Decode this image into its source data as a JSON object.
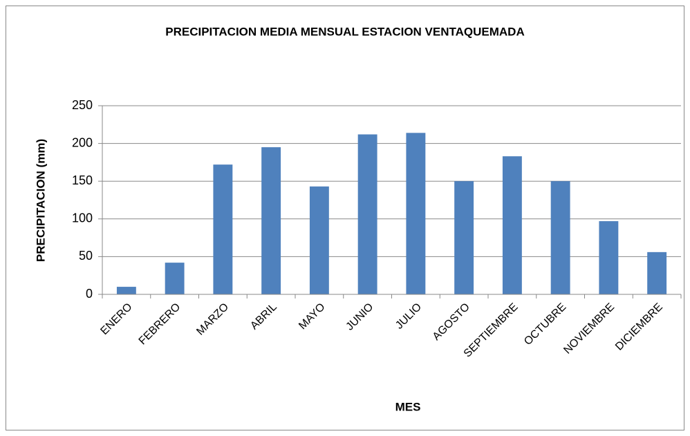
{
  "chart_data": {
    "type": "bar",
    "title": "PRECIPITACION MEDIA MENSUAL ESTACION VENTAQUEMADA",
    "x_label": "MES",
    "y_label": "PRECIPITACION (mm)",
    "categories": [
      "ENERO",
      "FEBRERO",
      "MARZO",
      "ABRIL",
      "MAYO",
      "JUNIO",
      "JULIO",
      "AGOSTO",
      "SEPTIEMBRE",
      "OCTUBRE",
      "NOVIEMBRE",
      "DICIEMBRE"
    ],
    "values": [
      10,
      42,
      172,
      195,
      143,
      212,
      214,
      150,
      183,
      150,
      97,
      56
    ],
    "color": "#4f81bd",
    "ylim": [
      0,
      250
    ],
    "yticks": [
      0,
      50,
      100,
      150,
      200,
      250
    ],
    "grid": true
  }
}
